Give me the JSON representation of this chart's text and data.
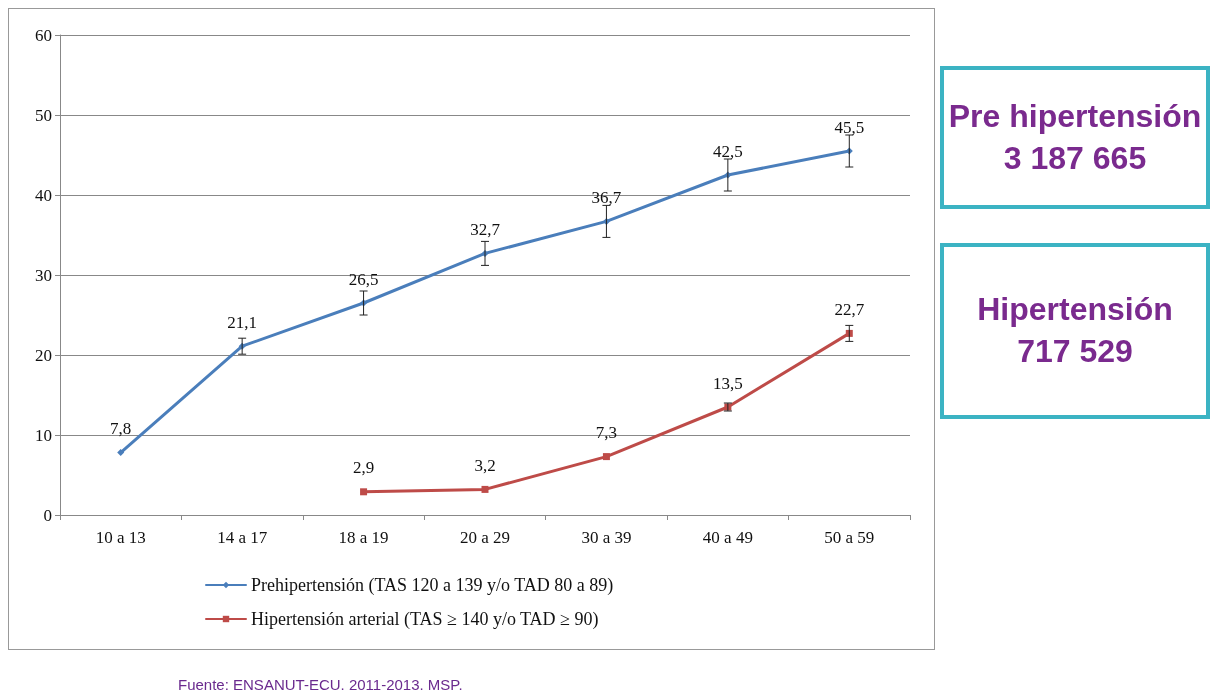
{
  "chart_data": {
    "type": "line",
    "categories": [
      "10 a 13",
      "14 a 17",
      "18 a 19",
      "20 a 29",
      "30 a 39",
      "40 a 49",
      "50 a 59"
    ],
    "series": [
      {
        "name": "Prehipertensión (TAS 120 a 139 y/o TAD 80 a 89)",
        "color": "#4a7ebb",
        "marker": "diamond",
        "values": [
          7.8,
          21.1,
          26.5,
          32.7,
          36.7,
          42.5,
          45.5
        ],
        "errors": [
          null,
          1,
          1.5,
          1.5,
          2,
          2,
          2
        ],
        "value_labels": [
          "7,8",
          "21,1",
          "26,5",
          "32,7",
          "36,7",
          "42,5",
          "45,5"
        ]
      },
      {
        "name": "Hipertensión arterial (TAS ≥ 140 y/o TAD ≥ 90)",
        "color": "#be4b48",
        "marker": "square",
        "values": [
          null,
          null,
          2.9,
          3.2,
          7.3,
          13.5,
          22.7
        ],
        "errors": [
          null,
          null,
          null,
          null,
          null,
          0.5,
          1
        ],
        "value_labels": [
          null,
          null,
          "2,9",
          "3,2",
          "7,3",
          "13,5",
          "22,7"
        ]
      }
    ],
    "ylim": [
      0,
      60
    ],
    "yticks": [
      0,
      10,
      20,
      30,
      40,
      50,
      60
    ],
    "grid": "y",
    "legend": "bottom",
    "line_style": "solid",
    "annotations": [
      "Pre hipertensión",
      "3 187 665",
      "Hipertensión",
      "717 529",
      "Fuente: ENSANUT-ECU. 2011-2013. MSP."
    ]
  }
}
